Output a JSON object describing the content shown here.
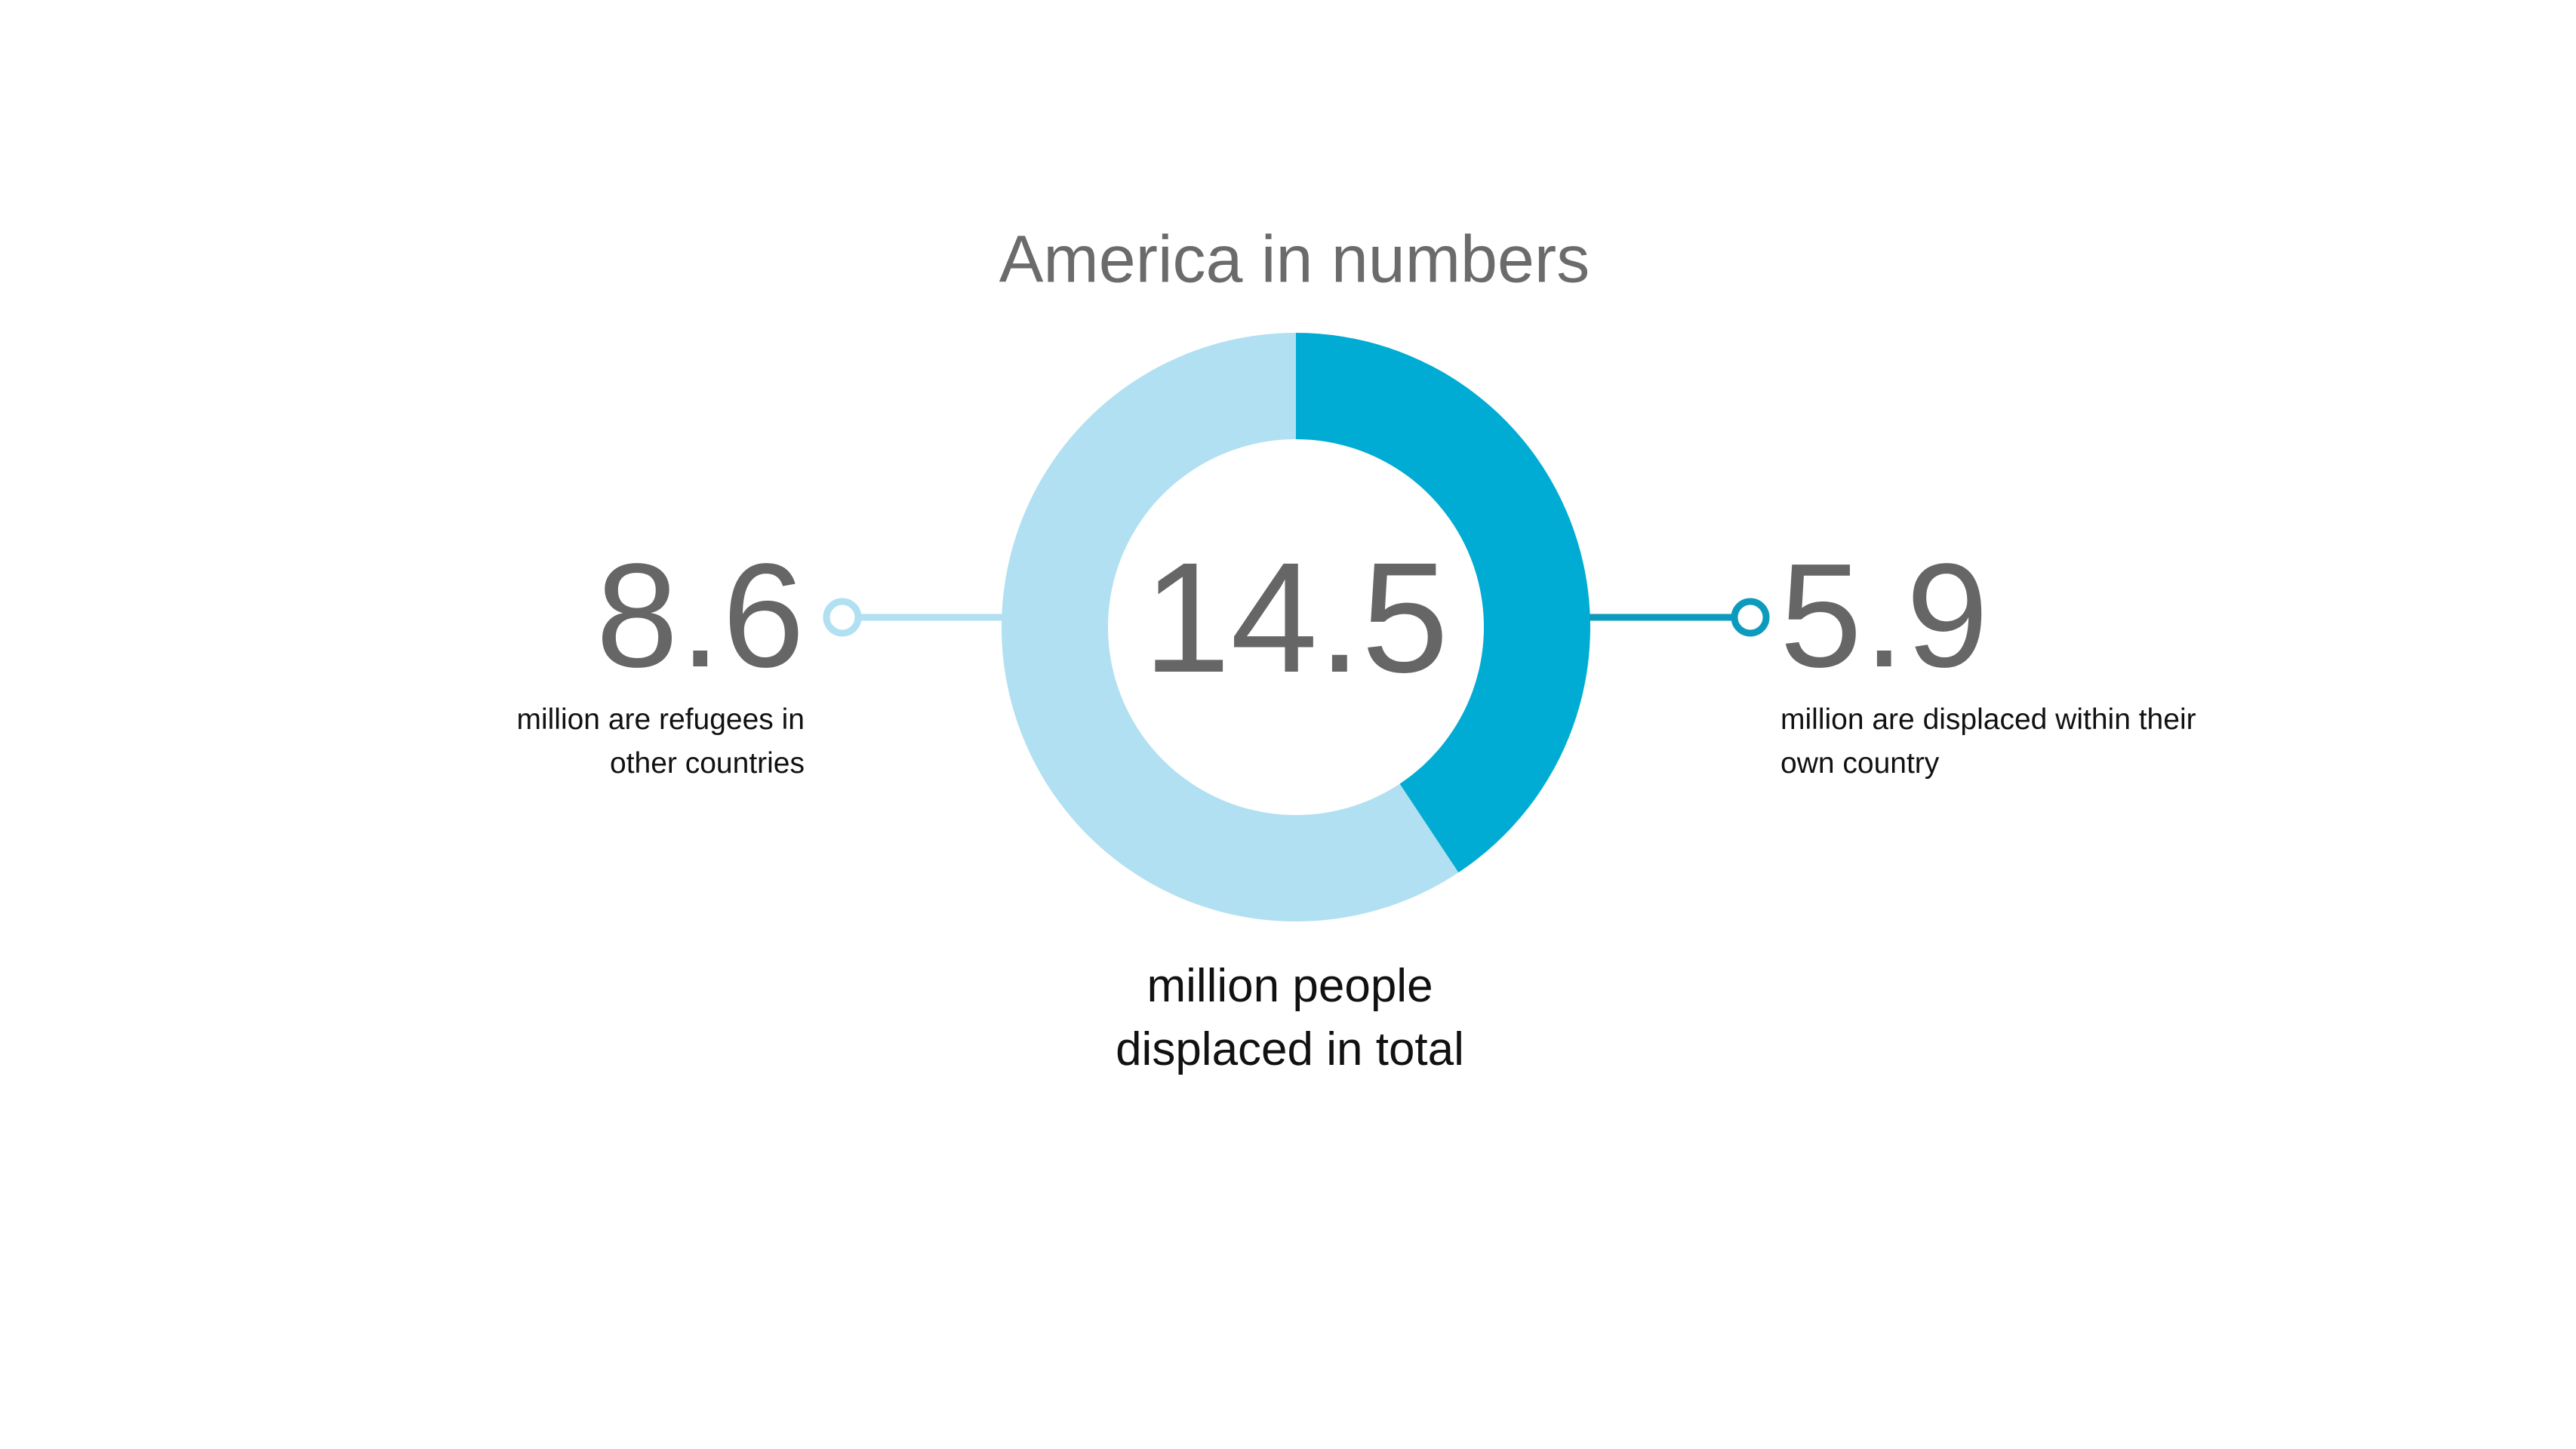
{
  "chart_data": {
    "type": "donut",
    "title": "America in numbers",
    "categories": [
      "million are displaced within their own country",
      "million are refugees in other countries"
    ],
    "values": [
      5.9,
      8.6
    ],
    "colors": [
      "#00acd3",
      "#b0e0f2"
    ],
    "connector_colors": [
      "#0d9bbd",
      "#b0e0f2"
    ],
    "total": 14.5,
    "total_label": "million people displaced in total"
  }
}
